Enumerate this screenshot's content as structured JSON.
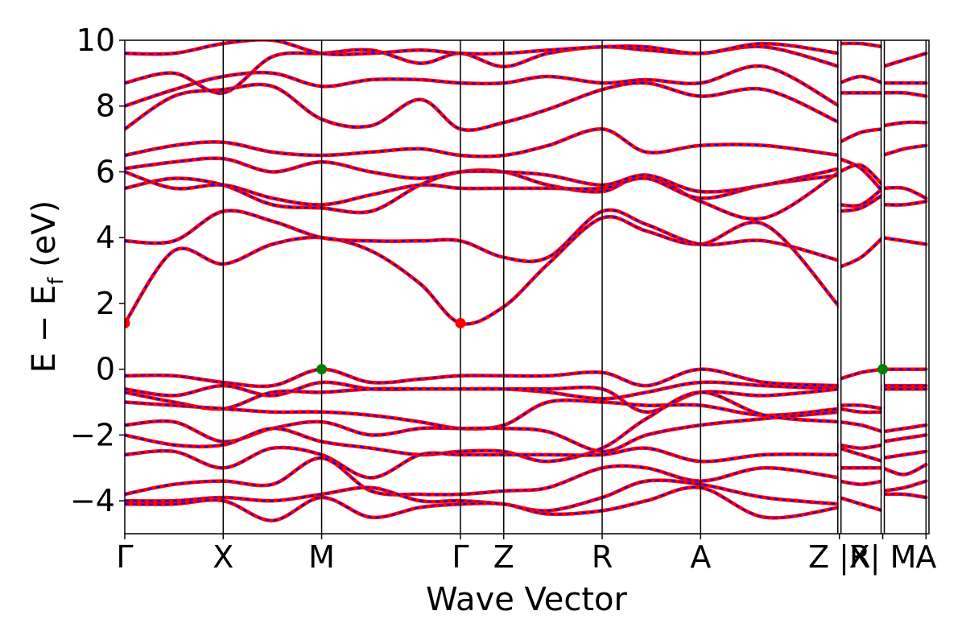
{
  "chart_data": {
    "type": "line",
    "xlabel": "Wave Vector",
    "ylabel": "E − E_f (eV)",
    "ylabel_parts": {
      "main": "E − E",
      "sub": "f",
      "unit": " (eV)"
    },
    "ylim": [
      -5,
      10
    ],
    "yticks": [
      -4,
      -2,
      0,
      2,
      4,
      6,
      8,
      10
    ],
    "ytick_labels": [
      "−4",
      "−2",
      "0",
      "2",
      "4",
      "6",
      "8",
      "10"
    ],
    "xlim": [
      0,
      8.17
    ],
    "kpoints": [
      {
        "label": "Γ",
        "x": 0.0
      },
      {
        "label": "X",
        "x": 1.0
      },
      {
        "label": "M",
        "x": 2.0
      },
      {
        "label": "Γ",
        "x": 3.41
      },
      {
        "label": "Z",
        "x": 3.85
      },
      {
        "label": "R",
        "x": 4.85
      },
      {
        "label": "A",
        "x": 5.85
      },
      {
        "label": "Z |R",
        "x": 7.26
      },
      {
        "label": "X| M",
        "x": 7.7
      },
      {
        "label": "A",
        "x": 8.14
      }
    ],
    "segment_breaks": [
      7.26,
      7.7
    ],
    "markers": [
      {
        "name": "CBM",
        "x": 0.0,
        "y": 1.4,
        "color": "#ff0000"
      },
      {
        "name": "CBM",
        "x": 3.41,
        "y": 1.4,
        "color": "#ff0000"
      },
      {
        "name": "VBM",
        "x": 2.0,
        "y": 0.0,
        "color": "#008000"
      },
      {
        "name": "VBM",
        "x": 7.7,
        "y": 0.0,
        "color": "#008000"
      }
    ],
    "colors": {
      "band_solid": "#ff0000",
      "band_dashed": "#0000ff",
      "vline": "#000000"
    },
    "bands": [
      {
        "x": [
          0,
          0.5,
          1,
          1.5,
          2,
          2.5,
          3.0,
          3.41,
          3.85,
          4.3,
          4.85,
          5.3,
          5.85,
          6.5,
          7.26
        ],
        "y": [
          1.4,
          3.6,
          3.2,
          3.8,
          4.0,
          3.6,
          2.6,
          1.4,
          1.9,
          3.2,
          4.6,
          4.2,
          3.8,
          4.4,
          1.9
        ]
      },
      {
        "x": [
          0,
          0.5,
          1,
          1.5,
          2,
          2.5,
          3.0,
          3.41,
          3.85,
          4.3,
          4.85,
          5.3,
          5.85,
          6.5,
          7.26
        ],
        "y": [
          3.9,
          3.9,
          4.8,
          4.5,
          4.0,
          3.9,
          3.9,
          3.9,
          3.4,
          3.4,
          4.8,
          4.4,
          3.8,
          3.9,
          3.3
        ]
      },
      {
        "x": [
          0,
          0.5,
          1,
          1.5,
          2,
          2.5,
          3.0,
          3.41,
          3.85,
          4.3,
          4.85,
          5.3,
          5.85,
          6.5,
          7.26
        ],
        "y": [
          5.5,
          5.8,
          5.6,
          5.0,
          4.9,
          4.8,
          5.6,
          6.0,
          6.0,
          5.6,
          5.4,
          5.9,
          5.1,
          4.6,
          6.0
        ]
      },
      {
        "x": [
          0,
          0.5,
          1,
          1.5,
          2,
          2.5,
          3.0,
          3.41,
          3.85,
          4.3,
          4.85,
          5.3,
          5.85,
          6.5,
          7.26
        ],
        "y": [
          6.0,
          5.5,
          5.6,
          5.2,
          5.0,
          5.3,
          5.6,
          5.5,
          5.5,
          5.5,
          5.5,
          5.8,
          5.2,
          5.6,
          5.9
        ]
      },
      {
        "x": [
          0,
          0.5,
          1,
          1.5,
          2,
          2.5,
          3.0,
          3.41,
          3.85,
          4.3,
          4.85,
          5.3,
          5.85,
          6.5,
          7.26
        ],
        "y": [
          6.1,
          6.3,
          6.4,
          6.0,
          6.3,
          6.0,
          5.8,
          6.0,
          6.0,
          5.9,
          5.6,
          5.9,
          5.4,
          5.6,
          6.1
        ]
      },
      {
        "x": [
          0,
          0.5,
          1,
          1.5,
          2,
          2.5,
          3.0,
          3.41,
          3.85,
          4.3,
          4.85,
          5.3,
          5.85,
          6.5,
          7.26
        ],
        "y": [
          6.5,
          6.8,
          6.9,
          6.6,
          6.5,
          6.6,
          6.7,
          6.5,
          6.5,
          6.8,
          7.3,
          6.6,
          6.8,
          6.8,
          6.5
        ]
      },
      {
        "x": [
          0,
          0.5,
          1,
          1.5,
          2,
          2.5,
          3.0,
          3.41,
          3.85,
          4.3,
          4.85,
          5.3,
          5.85,
          6.5,
          7.26
        ],
        "y": [
          7.3,
          8.3,
          8.5,
          8.6,
          7.6,
          7.4,
          8.2,
          7.3,
          7.5,
          7.9,
          8.5,
          8.7,
          8.3,
          8.5,
          7.5
        ]
      },
      {
        "x": [
          0,
          0.5,
          1,
          1.5,
          2,
          2.5,
          3.0,
          3.41,
          3.85,
          4.3,
          4.85,
          5.3,
          5.85,
          6.5,
          7.26
        ],
        "y": [
          8.0,
          8.5,
          8.9,
          9.0,
          8.6,
          8.8,
          8.8,
          8.7,
          8.7,
          8.9,
          8.7,
          8.8,
          8.7,
          9.2,
          8.0
        ]
      },
      {
        "x": [
          0,
          0.5,
          1,
          1.5,
          2,
          2.5,
          3.0,
          3.41,
          3.85,
          4.3,
          4.85,
          5.3,
          5.85,
          6.5,
          7.26
        ],
        "y": [
          8.7,
          9.0,
          8.4,
          9.5,
          9.6,
          9.7,
          9.3,
          9.6,
          9.2,
          9.6,
          9.8,
          9.7,
          9.6,
          9.8,
          9.2
        ]
      },
      {
        "x": [
          0,
          0.5,
          1,
          1.5,
          2,
          2.5,
          3.0,
          3.41,
          3.85,
          4.3,
          4.85,
          5.3,
          5.85,
          6.5,
          7.26
        ],
        "y": [
          9.6,
          9.6,
          9.9,
          10.0,
          9.6,
          9.6,
          9.7,
          9.6,
          9.6,
          9.7,
          9.8,
          9.8,
          9.6,
          9.9,
          9.6
        ]
      },
      {
        "x": [
          0,
          0.5,
          1,
          1.5,
          2,
          2.5,
          3.0,
          3.41,
          3.85,
          4.3,
          4.85,
          5.3,
          5.85,
          6.5,
          7.26
        ],
        "y": [
          -0.2,
          -0.2,
          -0.4,
          -0.5,
          0.0,
          -0.4,
          -0.3,
          -0.2,
          -0.2,
          -0.2,
          -0.1,
          -0.5,
          0.0,
          -0.4,
          -0.5
        ]
      },
      {
        "x": [
          0,
          0.5,
          1,
          1.5,
          2,
          2.5,
          3.0,
          3.41,
          3.85,
          4.3,
          4.85,
          5.3,
          5.85,
          6.5,
          7.26
        ],
        "y": [
          -0.6,
          -0.8,
          -0.5,
          -0.8,
          -0.4,
          -0.6,
          -0.6,
          -0.6,
          -0.6,
          -0.7,
          -0.9,
          -0.7,
          -0.4,
          -0.5,
          -0.6
        ]
      },
      {
        "x": [
          0,
          0.5,
          1,
          1.5,
          2,
          2.5,
          3.0,
          3.41,
          3.85,
          4.3,
          4.85,
          5.3,
          5.85,
          6.5,
          7.26
        ],
        "y": [
          -0.7,
          -1.0,
          -1.2,
          -0.7,
          -0.7,
          -0.6,
          -0.6,
          -0.6,
          -0.6,
          -0.6,
          -0.6,
          -1.3,
          -0.7,
          -0.8,
          -0.6
        ]
      },
      {
        "x": [
          0,
          0.5,
          1,
          1.5,
          2,
          2.5,
          3.0,
          3.41,
          3.85,
          4.3,
          4.85,
          5.3,
          5.85,
          6.5,
          7.26
        ],
        "y": [
          -1.0,
          -1.1,
          -1.2,
          -1.3,
          -1.3,
          -1.4,
          -1.6,
          -1.8,
          -1.7,
          -1.0,
          -1.0,
          -1.1,
          -1.1,
          -1.4,
          -1.2
        ]
      },
      {
        "x": [
          0,
          0.5,
          1,
          1.5,
          2,
          2.5,
          3.0,
          3.41,
          3.85,
          4.3,
          4.85,
          5.3,
          5.85,
          6.5,
          7.26
        ],
        "y": [
          -1.7,
          -1.6,
          -2.2,
          -1.8,
          -1.6,
          -2.0,
          -1.8,
          -1.8,
          -1.8,
          -1.9,
          -2.5,
          -2.0,
          -1.7,
          -1.5,
          -1.3
        ]
      },
      {
        "x": [
          0,
          0.5,
          1,
          1.5,
          2,
          2.5,
          3.0,
          3.41,
          3.85,
          4.3,
          4.85,
          5.3,
          5.85,
          6.5,
          7.26
        ],
        "y": [
          -2.0,
          -2.3,
          -2.3,
          -1.8,
          -2.2,
          -2.4,
          -2.6,
          -2.5,
          -2.5,
          -2.8,
          -2.4,
          -1.5,
          -0.7,
          -1.4,
          -1.6
        ]
      },
      {
        "x": [
          0,
          0.5,
          1,
          1.5,
          2,
          2.5,
          3.0,
          3.41,
          3.85,
          4.3,
          4.85,
          5.3,
          5.85,
          6.5,
          7.26
        ],
        "y": [
          -2.6,
          -2.5,
          -3.0,
          -2.4,
          -2.6,
          -3.3,
          -2.6,
          -2.6,
          -2.6,
          -2.6,
          -2.6,
          -2.4,
          -2.8,
          -2.6,
          -2.6
        ]
      },
      {
        "x": [
          0,
          0.5,
          1,
          1.5,
          2,
          2.5,
          3.0,
          3.41,
          3.85,
          4.3,
          4.85,
          5.3,
          5.85,
          6.5,
          7.26
        ],
        "y": [
          -3.8,
          -3.5,
          -3.4,
          -3.5,
          -2.7,
          -3.7,
          -3.8,
          -3.8,
          -3.7,
          -3.6,
          -3.0,
          -3.0,
          -3.4,
          -3.0,
          -3.3
        ]
      },
      {
        "x": [
          0,
          0.5,
          1,
          1.5,
          2,
          2.5,
          3.0,
          3.41,
          3.85,
          4.3,
          4.85,
          5.3,
          5.85,
          6.5,
          7.26
        ],
        "y": [
          -4.0,
          -4.0,
          -3.9,
          -4.0,
          -3.8,
          -3.6,
          -4.0,
          -4.0,
          -4.1,
          -4.3,
          -3.9,
          -3.4,
          -3.5,
          -3.9,
          -4.1
        ]
      },
      {
        "x": [
          0,
          0.5,
          1,
          1.5,
          2,
          2.5,
          3.0,
          3.41,
          3.85,
          4.3,
          4.85,
          5.3,
          5.85,
          6.5,
          7.26
        ],
        "y": [
          -4.1,
          -4.1,
          -4.0,
          -4.6,
          -3.9,
          -4.5,
          -4.2,
          -4.1,
          -4.1,
          -4.4,
          -4.3,
          -4.0,
          -3.6,
          -4.5,
          -4.2
        ]
      },
      {
        "x": [
          7.26,
          7.48,
          7.7
        ],
        "y": [
          3.1,
          3.4,
          4.0
        ]
      },
      {
        "x": [
          7.26,
          7.48,
          7.7
        ],
        "y": [
          4.8,
          4.9,
          5.3
        ]
      },
      {
        "x": [
          7.26,
          7.48,
          7.7
        ],
        "y": [
          5.0,
          5.0,
          5.5
        ]
      },
      {
        "x": [
          7.26,
          7.48,
          7.7
        ],
        "y": [
          6.0,
          6.2,
          5.6
        ]
      },
      {
        "x": [
          7.26,
          7.48,
          7.7
        ],
        "y": [
          6.4,
          6.1,
          5.4
        ]
      },
      {
        "x": [
          7.26,
          7.48,
          7.7
        ],
        "y": [
          6.9,
          7.2,
          7.3
        ]
      },
      {
        "x": [
          7.26,
          7.48,
          7.7
        ],
        "y": [
          8.4,
          8.4,
          8.4
        ]
      },
      {
        "x": [
          7.26,
          7.48,
          7.7
        ],
        "y": [
          8.7,
          8.9,
          8.7
        ]
      },
      {
        "x": [
          7.26,
          7.48,
          7.7
        ],
        "y": [
          9.9,
          9.9,
          9.8
        ]
      },
      {
        "x": [
          7.26,
          7.48,
          7.7
        ],
        "y": [
          -0.3,
          -0.1,
          0.0
        ]
      },
      {
        "x": [
          7.26,
          7.48,
          7.7
        ],
        "y": [
          -1.1,
          -1.1,
          -1.2
        ]
      },
      {
        "x": [
          7.26,
          7.48,
          7.7
        ],
        "y": [
          -1.2,
          -1.3,
          -1.3
        ]
      },
      {
        "x": [
          7.26,
          7.48,
          7.7
        ],
        "y": [
          -1.6,
          -1.7,
          -1.9
        ]
      },
      {
        "x": [
          7.26,
          7.48,
          7.7
        ],
        "y": [
          -2.3,
          -2.4,
          -2.3
        ]
      },
      {
        "x": [
          7.26,
          7.48,
          7.7
        ],
        "y": [
          -2.4,
          -2.6,
          -2.8
        ]
      },
      {
        "x": [
          7.26,
          7.48,
          7.7
        ],
        "y": [
          -3.0,
          -3.0,
          -3.0
        ]
      },
      {
        "x": [
          7.26,
          7.48,
          7.7
        ],
        "y": [
          -3.4,
          -3.5,
          -3.4
        ]
      },
      {
        "x": [
          7.26,
          7.48,
          7.7
        ],
        "y": [
          -3.9,
          -4.1,
          -4.3
        ]
      },
      {
        "x": [
          7.7,
          7.92,
          8.14
        ],
        "y": [
          0.0,
          0.0,
          0.0
        ]
      },
      {
        "x": [
          7.7,
          7.92,
          8.14
        ],
        "y": [
          -0.5,
          -0.5,
          -0.5
        ]
      },
      {
        "x": [
          7.7,
          7.92,
          8.14
        ],
        "y": [
          -0.6,
          -0.6,
          -0.6
        ]
      },
      {
        "x": [
          7.7,
          7.92,
          8.14
        ],
        "y": [
          -1.9,
          -1.8,
          -1.7
        ]
      },
      {
        "x": [
          7.7,
          7.92,
          8.14
        ],
        "y": [
          -2.2,
          -2.1,
          -2.0
        ]
      },
      {
        "x": [
          7.7,
          7.92,
          8.14
        ],
        "y": [
          -2.7,
          -2.6,
          -2.5
        ]
      },
      {
        "x": [
          7.7,
          7.92,
          8.14
        ],
        "y": [
          -3.0,
          -3.2,
          -2.9
        ]
      },
      {
        "x": [
          7.7,
          7.92,
          8.14
        ],
        "y": [
          -3.7,
          -3.6,
          -3.4
        ]
      },
      {
        "x": [
          7.7,
          7.92,
          8.14
        ],
        "y": [
          -3.8,
          -3.8,
          -3.9
        ]
      },
      {
        "x": [
          7.7,
          7.92,
          8.14
        ],
        "y": [
          4.0,
          3.9,
          3.8
        ]
      },
      {
        "x": [
          7.7,
          7.92,
          8.14
        ],
        "y": [
          5.0,
          5.0,
          5.1
        ]
      },
      {
        "x": [
          7.7,
          7.92,
          8.14
        ],
        "y": [
          5.5,
          5.5,
          5.2
        ]
      },
      {
        "x": [
          7.7,
          7.92,
          8.14
        ],
        "y": [
          6.5,
          6.7,
          6.8
        ]
      },
      {
        "x": [
          7.7,
          7.92,
          8.14
        ],
        "y": [
          7.4,
          7.5,
          7.5
        ]
      },
      {
        "x": [
          7.7,
          7.92,
          8.14
        ],
        "y": [
          8.4,
          8.4,
          8.3
        ]
      },
      {
        "x": [
          7.7,
          7.92,
          8.14
        ],
        "y": [
          8.7,
          8.7,
          8.7
        ]
      },
      {
        "x": [
          7.7,
          7.92,
          8.14
        ],
        "y": [
          9.2,
          9.4,
          9.6
        ]
      }
    ]
  }
}
